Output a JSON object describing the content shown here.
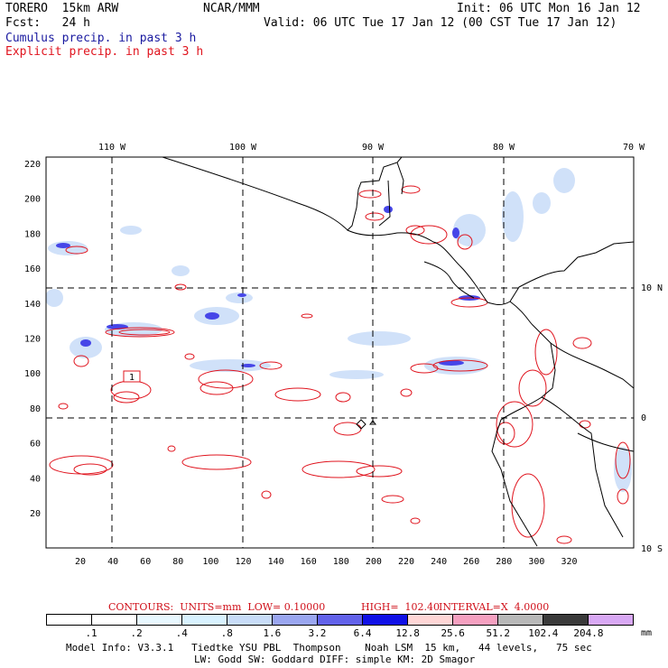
{
  "header": {
    "model": "TORERO  15km ARW",
    "org": "NCAR/MMM",
    "init": "Init: 06 UTC Mon 16 Jan 12",
    "fcst": "Fcst:   24 h",
    "valid": "Valid: 06 UTC Tue 17 Jan 12 (00 CST Tue 17 Jan 12)",
    "cumulus": "Cumulus precip. in past 3 h",
    "explicit": "Explicit precip. in past 3 h"
  },
  "map": {
    "top_lon_labels": [
      "110 W",
      "100 W",
      "90 W",
      "80 W",
      "70 W"
    ],
    "right_lat_labels": [
      "10 N",
      "0",
      "10 S"
    ],
    "left_ticks": [
      "220",
      "200",
      "180",
      "160",
      "140",
      "120",
      "100",
      "80",
      "60",
      "40",
      "20"
    ],
    "bottom_ticks": [
      "20",
      "40",
      "60",
      "80",
      "100",
      "120",
      "140",
      "160",
      "180",
      "200",
      "220",
      "240",
      "260",
      "280",
      "300",
      "320"
    ],
    "contour_label": "1",
    "colors": {
      "explicit": "#e0141e",
      "cumulus": "#2a2ae6",
      "coast": "#000000"
    }
  },
  "contours_caption": {
    "text": "CONTOURS:  UNITS=mm  LOW= 0.10000",
    "high": "HIGH=  102.40",
    "interval": "INTERVAL=X  4.0000"
  },
  "scale": {
    "labels": [
      ".1",
      ".2",
      ".4",
      ".8",
      "1.6",
      "3.2",
      "6.4",
      "12.8",
      "25.6",
      "51.2",
      "102.4",
      "204.8"
    ],
    "colors": [
      "#ffffff",
      "#ffffff",
      "#e8f8ff",
      "#d8f2ff",
      "#c8dcf8",
      "#9aa6f0",
      "#6262ea",
      "#1010e6",
      "#ffd6d6",
      "#f5a0c0",
      "#b8b8b8",
      "#3a3a3a",
      "#d8a8f4"
    ],
    "unit": "mm"
  },
  "footer": {
    "line1": "Model Info: V3.3.1   Tiedtke YSU PBL  Thompson    Noah LSM  15 km,   44 levels,   75 sec",
    "line2": "LW: Godd SW: Goddard DIFF: simple KM: 2D Smagor"
  }
}
